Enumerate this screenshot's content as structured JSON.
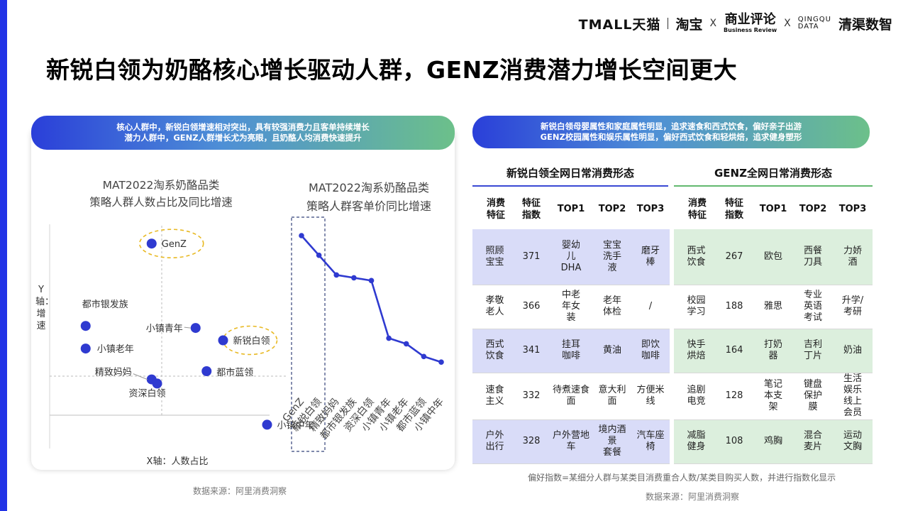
{
  "header": {
    "logo_tmall": "TMALL天猫",
    "logo_taobao": "淘宝",
    "logo_x": "X",
    "logo_br_cn": "商业评论",
    "logo_br_en": "Business Review",
    "logo_qq_en1": "QINGQU",
    "logo_qq_en2": "DATA",
    "logo_qq_cn": "清渠数智"
  },
  "title": "新锐白领为奶酪核心增长驱动人群，GENZ消费潜力增长空间更大",
  "left_banner": {
    "line1": "核心人群中，新锐白领增速相对突出，具有较强消费力且客单持续增长",
    "line2": "潜力人群中，GENZ人群增长尤为亮眼，且奶酪人均消费快速提升"
  },
  "right_banner": {
    "line1": "新锐白领母婴属性和家庭属性明显，追求速食和西式饮食，偏好亲子出游",
    "line2": "GENZ校园属性和娱乐属性明显，偏好西式饮食和轻烘焙，追求健身塑形"
  },
  "chart_data": [
    {
      "type": "scatter",
      "title_line1": "MAT2022淘系奶酪品类",
      "title_line2": "策略人群人数占比及同比增速",
      "ylabel": "Y轴：增速",
      "xlabel": "X轴：人数占比",
      "grid": false,
      "highlighted": [
        "GenZ",
        "新锐白领"
      ],
      "points": [
        {
          "label": "GenZ",
          "x": 0.17,
          "y": 0.92
        },
        {
          "label": "都市银发族",
          "x": 0.05,
          "y": 0.52
        },
        {
          "label": "小镇青年",
          "x": 0.25,
          "y": 0.51
        },
        {
          "label": "新锐白领",
          "x": 0.3,
          "y": 0.45
        },
        {
          "label": "小镇老年",
          "x": 0.05,
          "y": 0.41
        },
        {
          "label": "都市蓝领",
          "x": 0.27,
          "y": 0.3
        },
        {
          "label": "精致妈妈",
          "x": 0.17,
          "y": 0.26
        },
        {
          "label": "资深白领",
          "x": 0.18,
          "y": 0.24
        },
        {
          "label": "小镇中年",
          "x": 0.38,
          "y": 0.04
        }
      ]
    },
    {
      "type": "line",
      "title_line1": "MAT2022淘系奶酪品类",
      "title_line2": "策略人群客单价同比增速",
      "categories": [
        "GenZ",
        "新锐白领",
        "精致妈妈",
        "都市银发族",
        "资深白领",
        "小镇青年",
        "小镇老年",
        "都市蓝领",
        "小镇中年"
      ],
      "values": [
        100,
        86,
        72,
        70,
        68,
        27,
        23,
        14,
        10
      ],
      "highlighted_categories": [
        "GenZ",
        "新锐白领"
      ]
    }
  ],
  "source_left": "数据来源：阿里消费洞察",
  "source_right": "数据来源：阿里消费洞察",
  "footnote": "偏好指数=某细分人群与某类目消费重合人数/某类目购买人数，并进行指数化显示",
  "table1": {
    "title": "新锐白领全网日常消费形态",
    "headers": [
      "消费\n特征",
      "特征\n指数",
      "TOP1",
      "TOP2",
      "TOP3"
    ],
    "rows": [
      {
        "shaded": true,
        "cells": [
          "照顾\n宝宝",
          "371",
          "婴幼\n儿\nDHA",
          "宝宝\n洗手\n液",
          "磨牙\n棒"
        ]
      },
      {
        "shaded": false,
        "cells": [
          "孝敬\n老人",
          "366",
          "中老\n年女\n装",
          "老年\n体检",
          "/"
        ]
      },
      {
        "shaded": true,
        "cells": [
          "西式\n饮食",
          "341",
          "挂耳\n咖啡",
          "黄油",
          "即饮\n咖啡"
        ]
      },
      {
        "shaded": false,
        "cells": [
          "速食\n主义",
          "332",
          "待煮速食\n面",
          "意大利面",
          "方便米线"
        ]
      },
      {
        "shaded": true,
        "cells": [
          "户外\n出行",
          "328",
          "户外营地\n车",
          "境内酒景\n套餐",
          "汽车座椅"
        ]
      }
    ]
  },
  "table2": {
    "title": "GENZ全网日常消费形态",
    "headers": [
      "消费\n特征",
      "特征\n指数",
      "TOP1",
      "TOP2",
      "TOP3"
    ],
    "rows": [
      {
        "shaded": true,
        "cells": [
          "西式\n饮食",
          "267",
          "欧包",
          "西餐\n刀具",
          "力娇\n酒"
        ]
      },
      {
        "shaded": false,
        "cells": [
          "校园\n学习",
          "188",
          "雅思",
          "专业\n英语\n考试",
          "升学/\n考研"
        ]
      },
      {
        "shaded": true,
        "cells": [
          "快手\n烘焙",
          "164",
          "打奶\n器",
          "吉利\n丁片",
          "奶油"
        ]
      },
      {
        "shaded": false,
        "cells": [
          "追剧\n电竞",
          "128",
          "笔记\n本支\n架",
          "键盘\n保护\n膜",
          "生活\n娱乐\n线上\n会员"
        ]
      },
      {
        "shaded": true,
        "cells": [
          "减脂\n健身",
          "108",
          "鸡胸",
          "混合\n麦片",
          "运动\n文胸"
        ]
      }
    ]
  },
  "colors": {
    "accent_blue": "#2f3ad0",
    "accent_green": "#62b96f",
    "highlight_ring": "#e8b923",
    "table1_shade": "#d9dcf8",
    "table2_shade": "#dcefdd"
  }
}
